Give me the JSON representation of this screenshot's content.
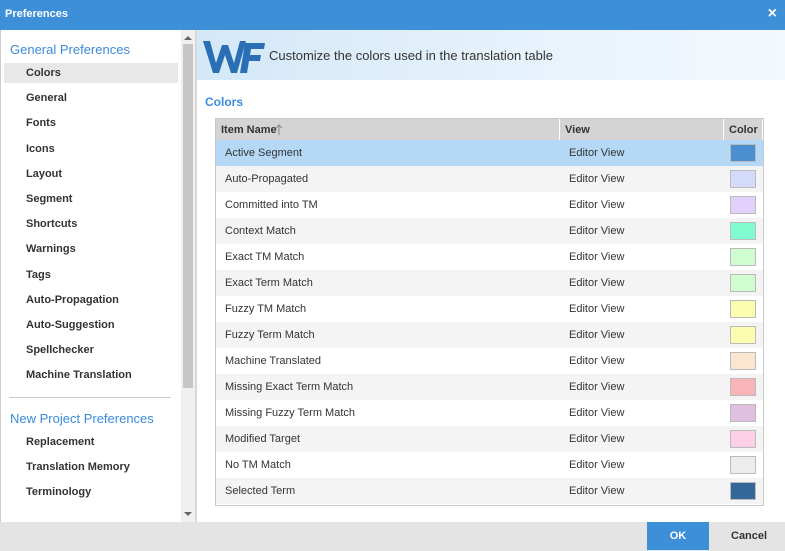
{
  "dialog": {
    "title": "Preferences",
    "close": "×"
  },
  "sidebar": {
    "sections": [
      {
        "heading": "General Preferences",
        "items": [
          "Colors",
          "General",
          "Fonts",
          "Icons",
          "Layout",
          "Segment",
          "Shortcuts",
          "Warnings",
          "Tags",
          "Auto-Propagation",
          "Auto-Suggestion",
          "Spellchecker",
          "Machine Translation"
        ],
        "selected": 0
      },
      {
        "heading": "New Project Preferences",
        "items": [
          "Replacement",
          "Translation Memory",
          "Terminology"
        ]
      }
    ]
  },
  "banner": {
    "text": "Customize the colors used in the translation table"
  },
  "section_title": "Colors",
  "table": {
    "columns": [
      "Item Name",
      "View",
      "Color"
    ],
    "selected_row": 0,
    "rows": [
      {
        "name": "Active Segment",
        "view": "Editor View",
        "color": "#4a90d0"
      },
      {
        "name": "Auto-Propagated",
        "view": "Editor View",
        "color": "#d2dcfa"
      },
      {
        "name": "Committed into TM",
        "view": "Editor View",
        "color": "#e2d0fa"
      },
      {
        "name": "Context Match",
        "view": "Editor View",
        "color": "#80fcd0"
      },
      {
        "name": "Exact TM Match",
        "view": "Editor View",
        "color": "#d0fdd0"
      },
      {
        "name": "Exact Term Match",
        "view": "Editor View",
        "color": "#d0fdd0"
      },
      {
        "name": "Fuzzy TM Match",
        "view": "Editor View",
        "color": "#fdfdb0"
      },
      {
        "name": "Fuzzy Term Match",
        "view": "Editor View",
        "color": "#fdfdb0"
      },
      {
        "name": "Machine Translated",
        "view": "Editor View",
        "color": "#fde6d0"
      },
      {
        "name": "Missing Exact Term Match",
        "view": "Editor View",
        "color": "#f8b4b8"
      },
      {
        "name": "Missing Fuzzy Term Match",
        "view": "Editor View",
        "color": "#e0c0e0"
      },
      {
        "name": "Modified Target",
        "view": "Editor View",
        "color": "#fdd0e8"
      },
      {
        "name": "No TM Match",
        "view": "Editor View",
        "color": "#ececec"
      },
      {
        "name": "Selected Term",
        "view": "Editor View",
        "color": "#336699"
      }
    ]
  },
  "buttons": {
    "ok": "OK",
    "cancel": "Cancel"
  }
}
